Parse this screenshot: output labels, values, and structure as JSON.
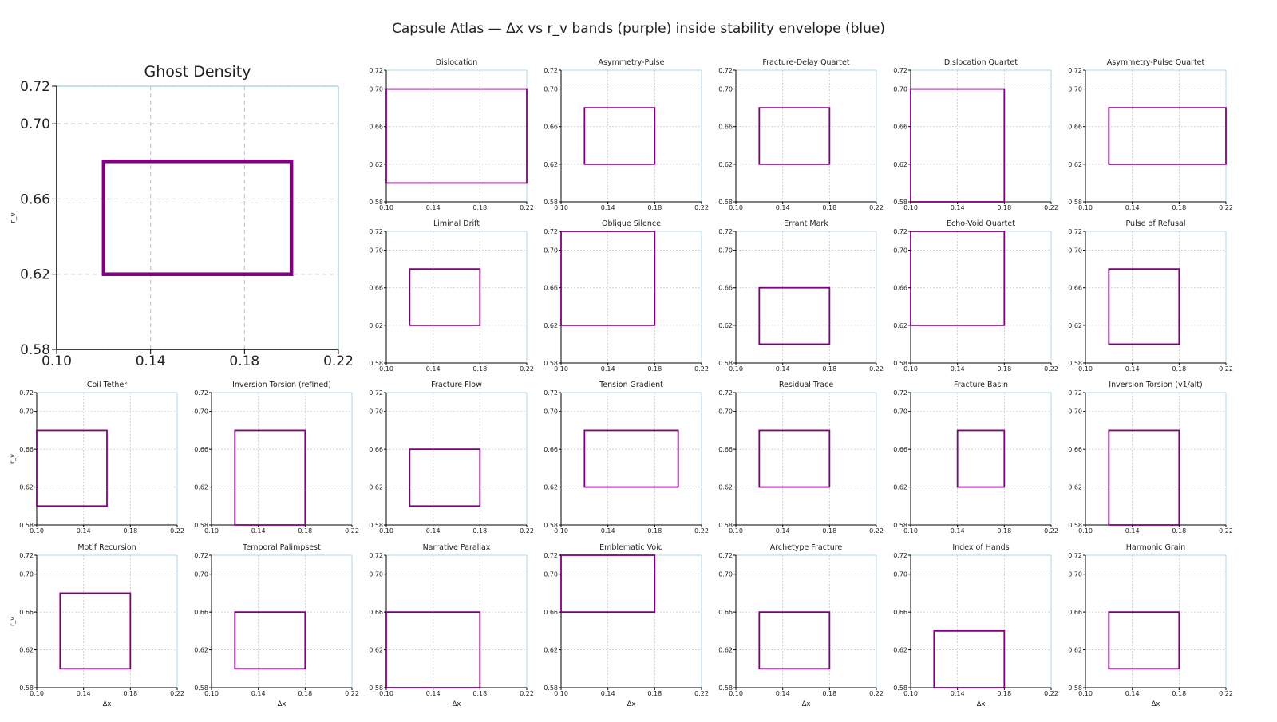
{
  "title": "Capsule Atlas — Δx vs r_v bands (purple) inside stability envelope (blue)",
  "colors": {
    "band": "#800080",
    "envelope": "#add8e6",
    "grid": "#c8c8c8",
    "axis": "#000000"
  },
  "axes_defaults": {
    "xlim": [
      0.1,
      0.22
    ],
    "ylim": [
      0.58,
      0.72
    ],
    "xticks": [
      "0.10",
      "0.14",
      "0.18",
      "0.22"
    ],
    "yticks": [
      "0.58",
      "0.62",
      "0.66",
      "0.70",
      "0.72"
    ],
    "xlabel": "Δx",
    "ylabel": "r_v",
    "grid": true
  },
  "chart_data": [
    {
      "type": "rectangle",
      "title": "Ghost Density",
      "band": {
        "x": [
          0.12,
          0.2
        ],
        "y": [
          0.62,
          0.68
        ]
      }
    },
    {
      "type": "rectangle",
      "title": "Dislocation",
      "band": {
        "x": [
          0.1,
          0.22
        ],
        "y": [
          0.6,
          0.7
        ]
      }
    },
    {
      "type": "rectangle",
      "title": "Asymmetry-Pulse",
      "band": {
        "x": [
          0.12,
          0.18
        ],
        "y": [
          0.62,
          0.68
        ]
      }
    },
    {
      "type": "rectangle",
      "title": "Fracture-Delay Quartet",
      "band": {
        "x": [
          0.12,
          0.18
        ],
        "y": [
          0.62,
          0.68
        ]
      }
    },
    {
      "type": "rectangle",
      "title": "Dislocation Quartet",
      "band": {
        "x": [
          0.1,
          0.18
        ],
        "y": [
          0.58,
          0.7
        ]
      }
    },
    {
      "type": "rectangle",
      "title": "Asymmetry-Pulse Quartet",
      "band": {
        "x": [
          0.12,
          0.22
        ],
        "y": [
          0.62,
          0.68
        ]
      }
    },
    {
      "type": "rectangle",
      "title": "Liminal Drift",
      "band": {
        "x": [
          0.12,
          0.18
        ],
        "y": [
          0.62,
          0.68
        ]
      }
    },
    {
      "type": "rectangle",
      "title": "Oblique Silence",
      "band": {
        "x": [
          0.1,
          0.18
        ],
        "y": [
          0.62,
          0.72
        ]
      }
    },
    {
      "type": "rectangle",
      "title": "Errant Mark",
      "band": {
        "x": [
          0.12,
          0.18
        ],
        "y": [
          0.6,
          0.66
        ]
      }
    },
    {
      "type": "rectangle",
      "title": "Echo-Void Quartet",
      "band": {
        "x": [
          0.1,
          0.18
        ],
        "y": [
          0.62,
          0.72
        ]
      }
    },
    {
      "type": "rectangle",
      "title": "Pulse of Refusal",
      "band": {
        "x": [
          0.12,
          0.18
        ],
        "y": [
          0.6,
          0.68
        ]
      }
    },
    {
      "type": "rectangle",
      "title": "Coil Tether",
      "band": {
        "x": [
          0.1,
          0.16
        ],
        "y": [
          0.6,
          0.68
        ]
      }
    },
    {
      "type": "rectangle",
      "title": "Inversion Torsion (refined)",
      "band": {
        "x": [
          0.12,
          0.18
        ],
        "y": [
          0.58,
          0.68
        ]
      }
    },
    {
      "type": "rectangle",
      "title": "Fracture Flow",
      "band": {
        "x": [
          0.12,
          0.18
        ],
        "y": [
          0.6,
          0.66
        ]
      }
    },
    {
      "type": "rectangle",
      "title": "Tension Gradient",
      "band": {
        "x": [
          0.12,
          0.2
        ],
        "y": [
          0.62,
          0.68
        ]
      }
    },
    {
      "type": "rectangle",
      "title": "Residual Trace",
      "band": {
        "x": [
          0.12,
          0.18
        ],
        "y": [
          0.62,
          0.68
        ]
      }
    },
    {
      "type": "rectangle",
      "title": "Fracture Basin",
      "band": {
        "x": [
          0.14,
          0.18
        ],
        "y": [
          0.62,
          0.68
        ]
      }
    },
    {
      "type": "rectangle",
      "title": "Inversion Torsion (v1/alt)",
      "band": {
        "x": [
          0.12,
          0.18
        ],
        "y": [
          0.58,
          0.68
        ]
      }
    },
    {
      "type": "rectangle",
      "title": "Motif Recursion",
      "band": {
        "x": [
          0.12,
          0.18
        ],
        "y": [
          0.6,
          0.68
        ]
      }
    },
    {
      "type": "rectangle",
      "title": "Temporal Palimpsest",
      "band": {
        "x": [
          0.12,
          0.18
        ],
        "y": [
          0.6,
          0.66
        ]
      }
    },
    {
      "type": "rectangle",
      "title": "Narrative Parallax",
      "band": {
        "x": [
          0.1,
          0.18
        ],
        "y": [
          0.58,
          0.66
        ]
      }
    },
    {
      "type": "rectangle",
      "title": "Emblematic Void",
      "band": {
        "x": [
          0.1,
          0.18
        ],
        "y": [
          0.66,
          0.72
        ]
      }
    },
    {
      "type": "rectangle",
      "title": "Archetype Fracture",
      "band": {
        "x": [
          0.12,
          0.18
        ],
        "y": [
          0.6,
          0.66
        ]
      }
    },
    {
      "type": "rectangle",
      "title": "Index of Hands",
      "band": {
        "x": [
          0.12,
          0.18
        ],
        "y": [
          0.58,
          0.64
        ]
      }
    },
    {
      "type": "rectangle",
      "title": "Harmonic Grain",
      "band": {
        "x": [
          0.12,
          0.18
        ],
        "y": [
          0.6,
          0.66
        ]
      }
    }
  ]
}
